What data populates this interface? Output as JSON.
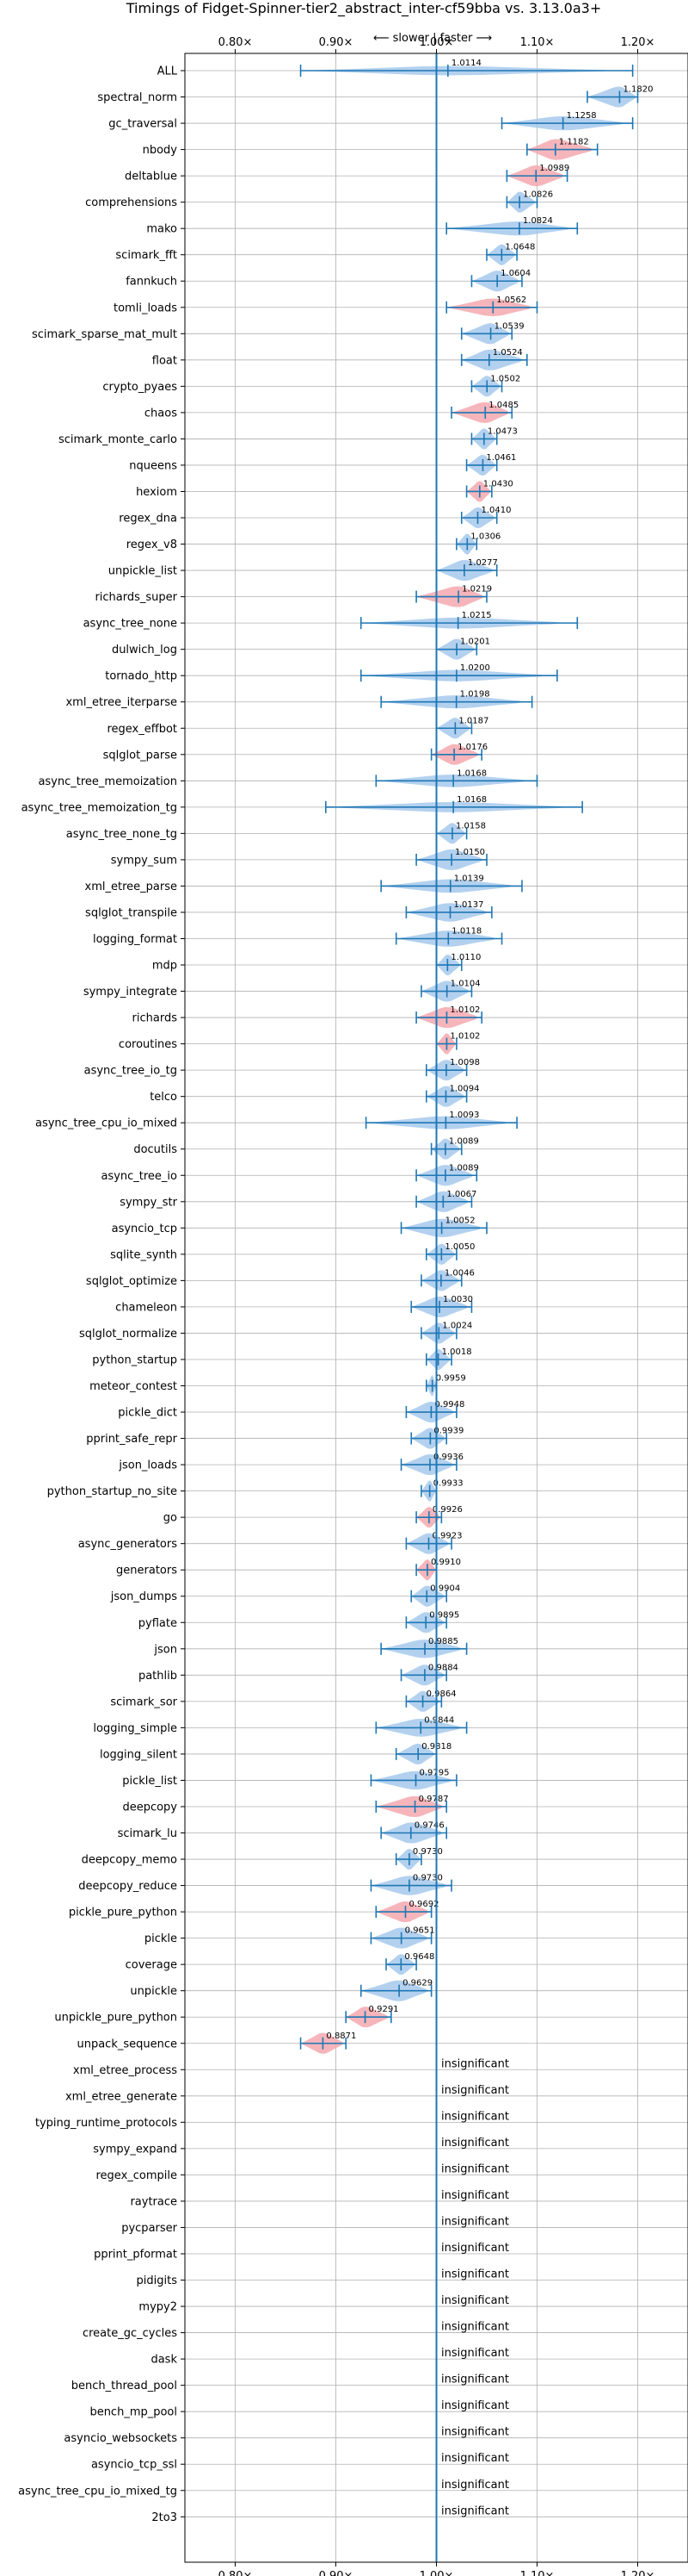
{
  "chart_data": {
    "type": "violin",
    "title": "Timings of Fidget-Spinner-tier2_abstract_inter-cf59bba vs. 3.13.0a3+",
    "direction_label": "⟵ slower | faster ⟶",
    "xlim": [
      0.75,
      1.25
    ],
    "x_ticks": [
      0.8,
      0.9,
      1.0,
      1.1,
      1.2
    ],
    "x_tick_labels": [
      "0.80×",
      "0.90×",
      "1.00×",
      "1.10×",
      "1.20×"
    ],
    "grid": true,
    "colors": {
      "faster": "#a6c9ec",
      "slower": "#f4a8ae",
      "line": "#1f77b4"
    },
    "insignificant_label": "insignificant",
    "benchmarks": [
      {
        "name": "ALL",
        "value": 1.0114,
        "label": "1.0114",
        "lo": 0.865,
        "hi": 1.195,
        "slower": false
      },
      {
        "name": "spectral_norm",
        "value": 1.182,
        "label": "1.1820",
        "lo": 1.15,
        "hi": 1.2,
        "slower": false
      },
      {
        "name": "gc_traversal",
        "value": 1.1258,
        "label": "1.1258",
        "lo": 1.065,
        "hi": 1.195,
        "slower": false
      },
      {
        "name": "nbody",
        "value": 1.1182,
        "label": "1.1182",
        "lo": 1.09,
        "hi": 1.16,
        "slower": true
      },
      {
        "name": "deltablue",
        "value": 1.0989,
        "label": "1.0989",
        "lo": 1.07,
        "hi": 1.13,
        "slower": true
      },
      {
        "name": "comprehensions",
        "value": 1.0826,
        "label": "1.0826",
        "lo": 1.07,
        "hi": 1.1,
        "slower": false
      },
      {
        "name": "mako",
        "value": 1.0824,
        "label": "1.0824",
        "lo": 1.01,
        "hi": 1.14,
        "slower": false
      },
      {
        "name": "scimark_fft",
        "value": 1.0648,
        "label": "1.0648",
        "lo": 1.05,
        "hi": 1.08,
        "slower": false
      },
      {
        "name": "fannkuch",
        "value": 1.0604,
        "label": "1.0604",
        "lo": 1.035,
        "hi": 1.085,
        "slower": false
      },
      {
        "name": "tomli_loads",
        "value": 1.0562,
        "label": "1.0562",
        "lo": 1.01,
        "hi": 1.1,
        "slower": true
      },
      {
        "name": "scimark_sparse_mat_mult",
        "value": 1.0539,
        "label": "1.0539",
        "lo": 1.025,
        "hi": 1.075,
        "slower": false
      },
      {
        "name": "float",
        "value": 1.0524,
        "label": "1.0524",
        "lo": 1.025,
        "hi": 1.09,
        "slower": false
      },
      {
        "name": "crypto_pyaes",
        "value": 1.0502,
        "label": "1.0502",
        "lo": 1.035,
        "hi": 1.065,
        "slower": false
      },
      {
        "name": "chaos",
        "value": 1.0485,
        "label": "1.0485",
        "lo": 1.015,
        "hi": 1.075,
        "slower": true
      },
      {
        "name": "scimark_monte_carlo",
        "value": 1.0473,
        "label": "1.0473",
        "lo": 1.035,
        "hi": 1.06,
        "slower": false
      },
      {
        "name": "nqueens",
        "value": 1.0461,
        "label": "1.0461",
        "lo": 1.03,
        "hi": 1.06,
        "slower": false
      },
      {
        "name": "hexiom",
        "value": 1.043,
        "label": "1.0430",
        "lo": 1.03,
        "hi": 1.055,
        "slower": true
      },
      {
        "name": "regex_dna",
        "value": 1.041,
        "label": "1.0410",
        "lo": 1.025,
        "hi": 1.06,
        "slower": false
      },
      {
        "name": "regex_v8",
        "value": 1.0306,
        "label": "1.0306",
        "lo": 1.02,
        "hi": 1.04,
        "slower": false
      },
      {
        "name": "unpickle_list",
        "value": 1.0277,
        "label": "1.0277",
        "lo": 1.0,
        "hi": 1.06,
        "slower": false
      },
      {
        "name": "richards_super",
        "value": 1.0219,
        "label": "1.0219",
        "lo": 0.98,
        "hi": 1.05,
        "slower": true
      },
      {
        "name": "async_tree_none",
        "value": 1.0215,
        "label": "1.0215",
        "lo": 0.925,
        "hi": 1.14,
        "slower": false
      },
      {
        "name": "dulwich_log",
        "value": 1.0201,
        "label": "1.0201",
        "lo": 1.0,
        "hi": 1.04,
        "slower": false
      },
      {
        "name": "tornado_http",
        "value": 1.02,
        "label": "1.0200",
        "lo": 0.925,
        "hi": 1.12,
        "slower": false
      },
      {
        "name": "xml_etree_iterparse",
        "value": 1.0198,
        "label": "1.0198",
        "lo": 0.945,
        "hi": 1.095,
        "slower": false
      },
      {
        "name": "regex_effbot",
        "value": 1.0187,
        "label": "1.0187",
        "lo": 1.0,
        "hi": 1.035,
        "slower": false
      },
      {
        "name": "sqlglot_parse",
        "value": 1.0176,
        "label": "1.0176",
        "lo": 0.995,
        "hi": 1.045,
        "slower": true
      },
      {
        "name": "async_tree_memoization",
        "value": 1.0168,
        "label": "1.0168",
        "lo": 0.94,
        "hi": 1.1,
        "slower": false
      },
      {
        "name": "async_tree_memoization_tg",
        "value": 1.0168,
        "label": "1.0168",
        "lo": 0.89,
        "hi": 1.145,
        "slower": false
      },
      {
        "name": "async_tree_none_tg",
        "value": 1.0158,
        "label": "1.0158",
        "lo": 1.0,
        "hi": 1.03,
        "slower": false
      },
      {
        "name": "sympy_sum",
        "value": 1.015,
        "label": "1.0150",
        "lo": 0.98,
        "hi": 1.05,
        "slower": false
      },
      {
        "name": "xml_etree_parse",
        "value": 1.0139,
        "label": "1.0139",
        "lo": 0.945,
        "hi": 1.085,
        "slower": false
      },
      {
        "name": "sqlglot_transpile",
        "value": 1.0137,
        "label": "1.0137",
        "lo": 0.97,
        "hi": 1.055,
        "slower": false
      },
      {
        "name": "logging_format",
        "value": 1.0118,
        "label": "1.0118",
        "lo": 0.96,
        "hi": 1.065,
        "slower": false
      },
      {
        "name": "mdp",
        "value": 1.011,
        "label": "1.0110",
        "lo": 1.0,
        "hi": 1.025,
        "slower": false
      },
      {
        "name": "sympy_integrate",
        "value": 1.0104,
        "label": "1.0104",
        "lo": 0.985,
        "hi": 1.035,
        "slower": false
      },
      {
        "name": "richards",
        "value": 1.0102,
        "label": "1.0102",
        "lo": 0.98,
        "hi": 1.045,
        "slower": true
      },
      {
        "name": "coroutines",
        "value": 1.0102,
        "label": "1.0102",
        "lo": 1.0,
        "hi": 1.02,
        "slower": true
      },
      {
        "name": "async_tree_io_tg",
        "value": 1.0098,
        "label": "1.0098",
        "lo": 0.99,
        "hi": 1.03,
        "slower": false
      },
      {
        "name": "telco",
        "value": 1.0094,
        "label": "1.0094",
        "lo": 0.99,
        "hi": 1.03,
        "slower": false
      },
      {
        "name": "async_tree_cpu_io_mixed",
        "value": 1.0093,
        "label": "1.0093",
        "lo": 0.93,
        "hi": 1.08,
        "slower": false
      },
      {
        "name": "docutils",
        "value": 1.0089,
        "label": "1.0089",
        "lo": 0.995,
        "hi": 1.025,
        "slower": false
      },
      {
        "name": "async_tree_io",
        "value": 1.0089,
        "label": "1.0089",
        "lo": 0.98,
        "hi": 1.04,
        "slower": false
      },
      {
        "name": "sympy_str",
        "value": 1.0067,
        "label": "1.0067",
        "lo": 0.98,
        "hi": 1.035,
        "slower": false
      },
      {
        "name": "asyncio_tcp",
        "value": 1.0052,
        "label": "1.0052",
        "lo": 0.965,
        "hi": 1.05,
        "slower": false
      },
      {
        "name": "sqlite_synth",
        "value": 1.005,
        "label": "1.0050",
        "lo": 0.99,
        "hi": 1.02,
        "slower": false
      },
      {
        "name": "sqlglot_optimize",
        "value": 1.0046,
        "label": "1.0046",
        "lo": 0.985,
        "hi": 1.025,
        "slower": false
      },
      {
        "name": "chameleon",
        "value": 1.003,
        "label": "1.0030",
        "lo": 0.975,
        "hi": 1.035,
        "slower": false
      },
      {
        "name": "sqlglot_normalize",
        "value": 1.0024,
        "label": "1.0024",
        "lo": 0.985,
        "hi": 1.02,
        "slower": false
      },
      {
        "name": "python_startup",
        "value": 1.0018,
        "label": "1.0018",
        "lo": 0.99,
        "hi": 1.015,
        "slower": false
      },
      {
        "name": "meteor_contest",
        "value": 0.9959,
        "label": "0.9959",
        "lo": 0.99,
        "hi": 1.0,
        "slower": false
      },
      {
        "name": "pickle_dict",
        "value": 0.9948,
        "label": "0.9948",
        "lo": 0.97,
        "hi": 1.02,
        "slower": false
      },
      {
        "name": "pprint_safe_repr",
        "value": 0.9939,
        "label": "0.9939",
        "lo": 0.975,
        "hi": 1.01,
        "slower": false
      },
      {
        "name": "json_loads",
        "value": 0.9936,
        "label": "0.9936",
        "lo": 0.965,
        "hi": 1.02,
        "slower": false
      },
      {
        "name": "python_startup_no_site",
        "value": 0.9933,
        "label": "0.9933",
        "lo": 0.985,
        "hi": 1.0,
        "slower": false
      },
      {
        "name": "go",
        "value": 0.9926,
        "label": "0.9926",
        "lo": 0.98,
        "hi": 1.005,
        "slower": true
      },
      {
        "name": "async_generators",
        "value": 0.9923,
        "label": "0.9923",
        "lo": 0.97,
        "hi": 1.015,
        "slower": false
      },
      {
        "name": "generators",
        "value": 0.991,
        "label": "0.9910",
        "lo": 0.98,
        "hi": 1.0,
        "slower": true
      },
      {
        "name": "json_dumps",
        "value": 0.9904,
        "label": "0.9904",
        "lo": 0.975,
        "hi": 1.01,
        "slower": false
      },
      {
        "name": "pyflate",
        "value": 0.9895,
        "label": "0.9895",
        "lo": 0.97,
        "hi": 1.01,
        "slower": false
      },
      {
        "name": "json",
        "value": 0.9885,
        "label": "0.9885",
        "lo": 0.945,
        "hi": 1.03,
        "slower": false
      },
      {
        "name": "pathlib",
        "value": 0.9884,
        "label": "0.9884",
        "lo": 0.965,
        "hi": 1.01,
        "slower": false
      },
      {
        "name": "scimark_sor",
        "value": 0.9864,
        "label": "0.9864",
        "lo": 0.97,
        "hi": 1.005,
        "slower": false
      },
      {
        "name": "logging_simple",
        "value": 0.9844,
        "label": "0.9844",
        "lo": 0.94,
        "hi": 1.03,
        "slower": false
      },
      {
        "name": "logging_silent",
        "value": 0.9818,
        "label": "0.9818",
        "lo": 0.96,
        "hi": 1.0,
        "slower": false
      },
      {
        "name": "pickle_list",
        "value": 0.9795,
        "label": "0.9795",
        "lo": 0.935,
        "hi": 1.02,
        "slower": false
      },
      {
        "name": "deepcopy",
        "value": 0.9787,
        "label": "0.9787",
        "lo": 0.94,
        "hi": 1.01,
        "slower": true
      },
      {
        "name": "scimark_lu",
        "value": 0.9746,
        "label": "0.9746",
        "lo": 0.945,
        "hi": 1.01,
        "slower": false
      },
      {
        "name": "deepcopy_memo",
        "value": 0.973,
        "label": "0.9730",
        "lo": 0.96,
        "hi": 0.985,
        "slower": false
      },
      {
        "name": "deepcopy_reduce",
        "value": 0.973,
        "label": "0.9730",
        "lo": 0.935,
        "hi": 1.015,
        "slower": false
      },
      {
        "name": "pickle_pure_python",
        "value": 0.9692,
        "label": "0.9692",
        "lo": 0.94,
        "hi": 0.995,
        "slower": true
      },
      {
        "name": "pickle",
        "value": 0.9651,
        "label": "0.9651",
        "lo": 0.935,
        "hi": 0.995,
        "slower": false
      },
      {
        "name": "coverage",
        "value": 0.9648,
        "label": "0.9648",
        "lo": 0.95,
        "hi": 0.98,
        "slower": false
      },
      {
        "name": "unpickle",
        "value": 0.9629,
        "label": "0.9629",
        "lo": 0.925,
        "hi": 0.995,
        "slower": false
      },
      {
        "name": "unpickle_pure_python",
        "value": 0.9291,
        "label": "0.9291",
        "lo": 0.91,
        "hi": 0.955,
        "slower": true
      },
      {
        "name": "unpack_sequence",
        "value": 0.8871,
        "label": "0.8871",
        "lo": 0.865,
        "hi": 0.91,
        "slower": true
      },
      {
        "name": "xml_etree_process",
        "insignificant": true
      },
      {
        "name": "xml_etree_generate",
        "insignificant": true
      },
      {
        "name": "typing_runtime_protocols",
        "insignificant": true
      },
      {
        "name": "sympy_expand",
        "insignificant": true
      },
      {
        "name": "regex_compile",
        "insignificant": true
      },
      {
        "name": "raytrace",
        "insignificant": true
      },
      {
        "name": "pycparser",
        "insignificant": true
      },
      {
        "name": "pprint_pformat",
        "insignificant": true
      },
      {
        "name": "pidigits",
        "insignificant": true
      },
      {
        "name": "mypy2",
        "insignificant": true
      },
      {
        "name": "create_gc_cycles",
        "insignificant": true
      },
      {
        "name": "dask",
        "insignificant": true
      },
      {
        "name": "bench_thread_pool",
        "insignificant": true
      },
      {
        "name": "bench_mp_pool",
        "insignificant": true
      },
      {
        "name": "asyncio_websockets",
        "insignificant": true
      },
      {
        "name": "asyncio_tcp_ssl",
        "insignificant": true
      },
      {
        "name": "async_tree_cpu_io_mixed_tg",
        "insignificant": true
      },
      {
        "name": "2to3",
        "insignificant": true
      }
    ]
  }
}
